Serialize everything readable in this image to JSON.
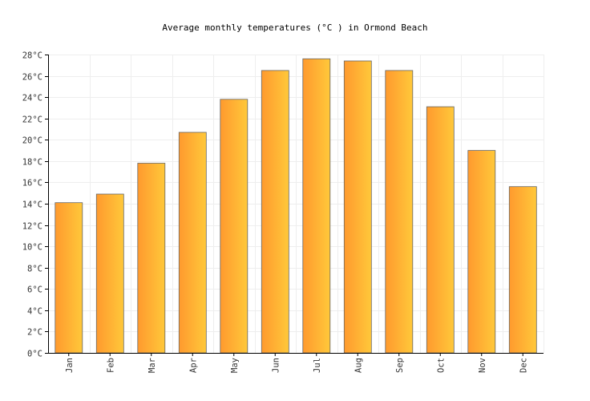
{
  "chart_data": {
    "type": "bar",
    "title": "Average monthly temperatures (°C ) in Ormond Beach",
    "categories": [
      "Jan",
      "Feb",
      "Mar",
      "Apr",
      "May",
      "Jun",
      "Jul",
      "Aug",
      "Sep",
      "Oct",
      "Nov",
      "Dec"
    ],
    "series": [
      {
        "values": [
          14.1,
          14.9,
          17.8,
          20.7,
          23.8,
          26.5,
          27.6,
          27.4,
          26.5,
          23.1,
          19.0,
          15.6
        ]
      }
    ],
    "ylim": [
      0,
      28
    ],
    "yticks": [
      0,
      2,
      4,
      6,
      8,
      10,
      12,
      14,
      16,
      18,
      20,
      22,
      24,
      26,
      28
    ],
    "ytick_labels": [
      "0°C",
      "2°C",
      "4°C",
      "6°C",
      "8°C",
      "10°C",
      "12°C",
      "14°C",
      "16°C",
      "18°C",
      "20°C",
      "22°C",
      "24°C",
      "26°C",
      "28°C"
    ],
    "grid": true,
    "legend": "none",
    "bar_gradient": [
      "#ff9a2e",
      "#ffc83a"
    ]
  }
}
